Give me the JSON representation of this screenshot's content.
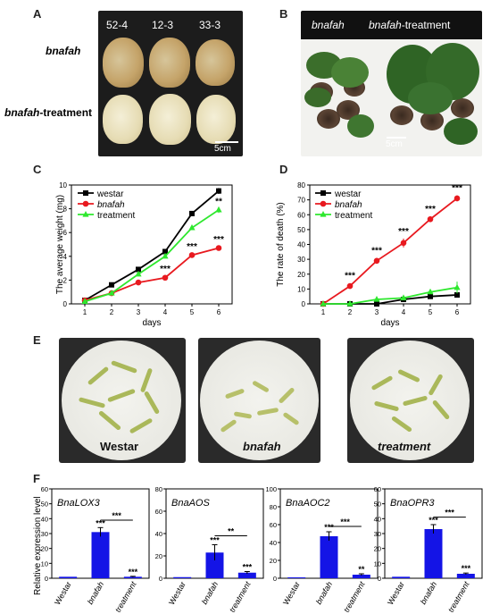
{
  "panels": {
    "A": {
      "letter": "A",
      "col_labels": [
        "52-4",
        "12-3",
        "33-3"
      ],
      "row_label_1": "bnafah",
      "row_label_2_italic": "bnafah",
      "row_label_2_rest": "-treatment",
      "scale": "5cm"
    },
    "B": {
      "letter": "B",
      "label_1": "bnafah",
      "label_2_italic": "bnafah",
      "label_2_rest": "-treatment",
      "scale": "5cm"
    },
    "C": {
      "letter": "C"
    },
    "D": {
      "letter": "D"
    },
    "E": {
      "letter": "E",
      "labels": [
        "Westar",
        "bnafah",
        "treatment"
      ]
    },
    "F": {
      "letter": "F",
      "ylabel": "Relative expression level"
    }
  },
  "colors": {
    "westar": "#000000",
    "bnafah": "#e8191f",
    "treatment": "#2ee82e",
    "bar": "#1414e6"
  },
  "chart_data": [
    {
      "type": "line",
      "id": "C",
      "xlabel": "days",
      "ylabel": "The average weight (mg)",
      "x": [
        1,
        2,
        3,
        4,
        5,
        6
      ],
      "xlim": [
        0.5,
        6.5
      ],
      "ylim": [
        0,
        10
      ],
      "yticks": [
        0,
        2,
        4,
        6,
        8,
        10
      ],
      "legend": "top-left",
      "series": [
        {
          "name": "westar",
          "values": [
            0.3,
            1.6,
            2.9,
            4.4,
            7.6,
            9.5
          ],
          "err": [
            0.05,
            0.1,
            0.1,
            0.15,
            0.15,
            0.25
          ]
        },
        {
          "name": "bnafah",
          "values": [
            0.3,
            0.9,
            1.8,
            2.2,
            4.1,
            4.7
          ],
          "err": [
            0.05,
            0.1,
            0.1,
            0.1,
            0.15,
            0.15
          ]
        },
        {
          "name": "treatment",
          "values": [
            0.2,
            0.9,
            2.5,
            4.0,
            6.4,
            7.9
          ],
          "err": [
            0.05,
            0.1,
            0.1,
            0.15,
            0.2,
            0.25
          ]
        }
      ],
      "annotations": [
        {
          "x": 3,
          "y": 2.6,
          "text": "*"
        },
        {
          "x": 4,
          "y": 2.7,
          "text": "***"
        },
        {
          "x": 5,
          "y": 4.6,
          "text": "***"
        },
        {
          "x": 6,
          "y": 5.2,
          "text": "***"
        },
        {
          "x": 6,
          "y": 8.4,
          "text": "**"
        }
      ]
    },
    {
      "type": "line",
      "id": "D",
      "xlabel": "days",
      "ylabel": "The rate of death (%)",
      "x": [
        1,
        2,
        3,
        4,
        5,
        6
      ],
      "xlim": [
        0.5,
        6.5
      ],
      "ylim": [
        0,
        80
      ],
      "yticks": [
        0,
        10,
        20,
        30,
        40,
        50,
        60,
        70,
        80
      ],
      "legend": "top-left",
      "series": [
        {
          "name": "westar",
          "values": [
            0,
            0,
            0,
            3,
            5,
            6
          ],
          "err": [
            0,
            0,
            0,
            1,
            1,
            1
          ]
        },
        {
          "name": "bnafah",
          "values": [
            0,
            12,
            29,
            41,
            57,
            71
          ],
          "err": [
            0,
            1,
            2,
            3,
            2,
            2
          ]
        },
        {
          "name": "treatment",
          "values": [
            0,
            0,
            3,
            4,
            8,
            11
          ],
          "err": [
            0,
            0,
            1,
            1,
            1,
            4
          ]
        }
      ],
      "annotations": [
        {
          "x": 2,
          "y": 17,
          "text": "***"
        },
        {
          "x": 3,
          "y": 34,
          "text": "***"
        },
        {
          "x": 4,
          "y": 47,
          "text": "***"
        },
        {
          "x": 5,
          "y": 62,
          "text": "***"
        },
        {
          "x": 6,
          "y": 76,
          "text": "***"
        }
      ]
    },
    {
      "type": "bar",
      "id": "F1",
      "title": "BnaLOX3",
      "categories": [
        "Westar",
        "bnafah",
        "treatment"
      ],
      "values": [
        1,
        31,
        1
      ],
      "err": [
        0,
        3,
        0.3
      ],
      "ylim": [
        0,
        60
      ],
      "yticks": [
        0,
        10,
        20,
        30,
        40,
        50,
        60
      ],
      "stars": [
        "",
        "***",
        "***"
      ],
      "bracket": {
        "from": 1,
        "to": 2,
        "y": 39,
        "text": "***"
      }
    },
    {
      "type": "bar",
      "id": "F2",
      "title": "BnaAOS",
      "categories": [
        "Westar",
        "bnafah",
        "treatment"
      ],
      "values": [
        1,
        23,
        5
      ],
      "err": [
        0,
        7,
        1
      ],
      "ylim": [
        0,
        80
      ],
      "yticks": [
        0,
        20,
        40,
        60,
        80
      ],
      "stars": [
        "",
        "***",
        "***"
      ],
      "bracket": {
        "from": 1,
        "to": 2,
        "y": 38,
        "text": "**"
      }
    },
    {
      "type": "bar",
      "id": "F3",
      "title": "BnaAOC2",
      "categories": [
        "Westar",
        "bnafah",
        "treatment"
      ],
      "values": [
        1,
        47,
        4
      ],
      "err": [
        0,
        5,
        1
      ],
      "ylim": [
        0,
        100
      ],
      "yticks": [
        0,
        20,
        40,
        60,
        80,
        100
      ],
      "stars": [
        "",
        "***",
        "**"
      ],
      "bracket": {
        "from": 1,
        "to": 2,
        "y": 58,
        "text": "***"
      }
    },
    {
      "type": "bar",
      "id": "F4",
      "title": "BnaOPR3",
      "categories": [
        "Westar",
        "bnafah",
        "treatment"
      ],
      "values": [
        1,
        33,
        3
      ],
      "err": [
        0,
        3,
        0.5
      ],
      "ylim": [
        0,
        60
      ],
      "yticks": [
        0,
        10,
        20,
        30,
        40,
        50,
        60
      ],
      "stars": [
        "",
        "***",
        "***"
      ],
      "bracket": {
        "from": 1,
        "to": 2,
        "y": 41,
        "text": "***"
      }
    }
  ]
}
